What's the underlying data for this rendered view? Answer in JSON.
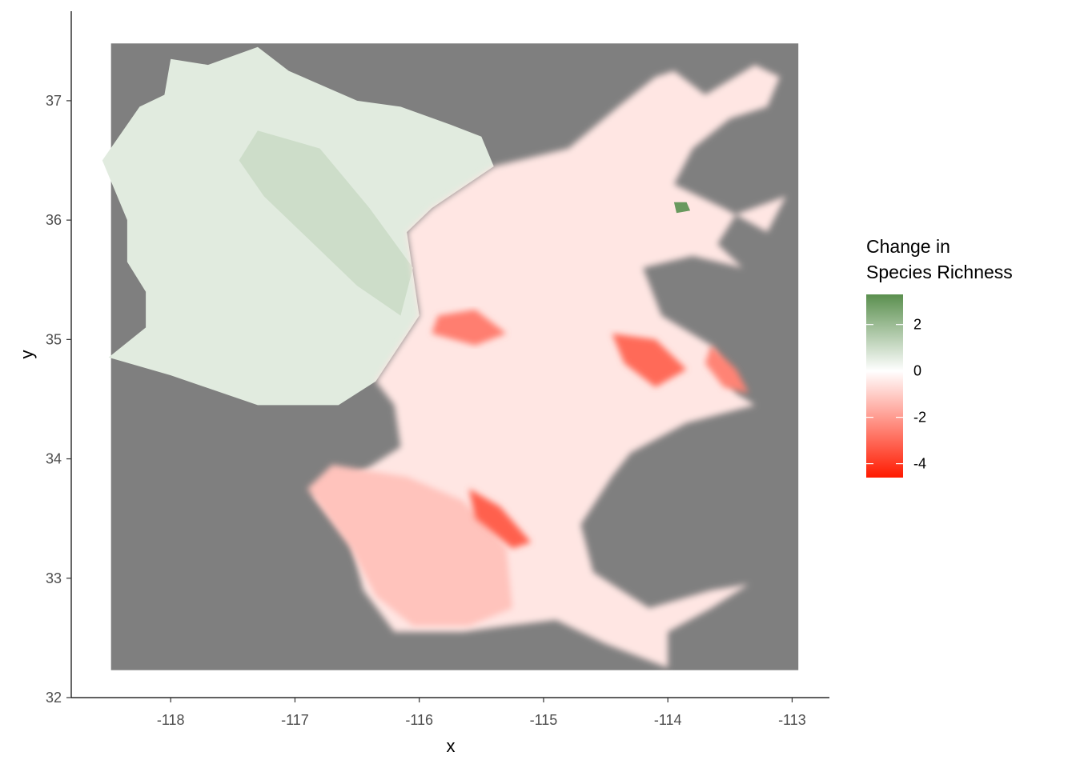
{
  "chart_data": {
    "type": "heatmap",
    "xlabel": "x",
    "ylabel": "y",
    "xlim": [
      -118.8,
      -112.7
    ],
    "ylim": [
      32.0,
      37.75
    ],
    "x_ticks": [
      -118,
      -117,
      -116,
      -115,
      -114,
      -113
    ],
    "x_tick_labels": [
      "-118",
      "-117",
      "-116",
      "-115",
      "-114",
      "-113"
    ],
    "y_ticks": [
      32,
      33,
      34,
      35,
      36,
      37
    ],
    "y_tick_labels": [
      "32",
      "33",
      "34",
      "35",
      "36",
      "37"
    ],
    "raster_extent": {
      "x": [
        -118.48,
        -112.95
      ],
      "y": [
        32.23,
        37.48
      ]
    },
    "na_fill": "#7f7f7f",
    "grid": false,
    "legend": {
      "title": "Change in\nSpecies Richness",
      "title_lines": [
        "Change in",
        "Species Richness"
      ],
      "placement": "right",
      "range": [
        -4.6,
        3.3
      ],
      "breaks": [
        2,
        0,
        -2,
        -4
      ],
      "break_labels": [
        "2",
        "0",
        "-2",
        "-4"
      ],
      "colors": {
        "high": "#5a8f4e",
        "mid": "#ffffff",
        "low": "#ff1a00"
      }
    },
    "regions": [
      {
        "name": "northwest",
        "value": 0.6,
        "outline": [
          [
            -118.0,
            37.35
          ],
          [
            -117.7,
            37.3
          ],
          [
            -117.3,
            37.45
          ],
          [
            -117.05,
            37.25
          ],
          [
            -116.5,
            37.0
          ],
          [
            -116.15,
            36.95
          ],
          [
            -115.75,
            36.8
          ],
          [
            -115.5,
            36.7
          ],
          [
            -115.4,
            36.45
          ],
          [
            -115.9,
            36.1
          ],
          [
            -116.1,
            35.9
          ],
          [
            -116.0,
            35.2
          ],
          [
            -116.35,
            34.65
          ],
          [
            -116.65,
            34.45
          ],
          [
            -117.3,
            34.45
          ],
          [
            -118.0,
            34.7
          ],
          [
            -118.5,
            34.85
          ],
          [
            -118.2,
            35.1
          ],
          [
            -118.2,
            35.4
          ],
          [
            -118.35,
            35.65
          ],
          [
            -118.35,
            36.0
          ],
          [
            -118.55,
            36.5
          ],
          [
            -118.25,
            36.95
          ],
          [
            -118.05,
            37.05
          ]
        ]
      },
      {
        "name": "northwest-core",
        "value": 1.0,
        "outline": [
          [
            -117.3,
            36.75
          ],
          [
            -116.8,
            36.6
          ],
          [
            -116.4,
            36.1
          ],
          [
            -116.05,
            35.6
          ],
          [
            -116.15,
            35.2
          ],
          [
            -116.5,
            35.45
          ],
          [
            -116.9,
            35.85
          ],
          [
            -117.25,
            36.2
          ],
          [
            -117.45,
            36.5
          ]
        ]
      },
      {
        "name": "central-east",
        "value": -0.5,
        "outline": [
          [
            -115.4,
            36.45
          ],
          [
            -114.8,
            36.6
          ],
          [
            -114.4,
            36.95
          ],
          [
            -114.1,
            37.2
          ],
          [
            -113.95,
            37.25
          ],
          [
            -113.7,
            37.05
          ],
          [
            -113.3,
            37.3
          ],
          [
            -113.1,
            37.2
          ],
          [
            -113.2,
            36.95
          ],
          [
            -113.5,
            36.85
          ],
          [
            -113.8,
            36.6
          ],
          [
            -113.95,
            36.3
          ],
          [
            -113.55,
            36.1
          ],
          [
            -113.2,
            35.9
          ],
          [
            -113.05,
            36.2
          ],
          [
            -113.45,
            36.05
          ],
          [
            -113.6,
            35.8
          ],
          [
            -113.4,
            35.6
          ],
          [
            -113.8,
            35.7
          ],
          [
            -114.2,
            35.6
          ],
          [
            -114.05,
            35.2
          ],
          [
            -113.65,
            34.95
          ],
          [
            -113.45,
            34.55
          ],
          [
            -113.3,
            34.45
          ],
          [
            -113.85,
            34.3
          ],
          [
            -114.3,
            34.05
          ],
          [
            -114.45,
            33.85
          ],
          [
            -114.7,
            33.45
          ],
          [
            -114.6,
            33.05
          ],
          [
            -114.15,
            32.75
          ],
          [
            -113.65,
            32.9
          ],
          [
            -113.35,
            32.95
          ],
          [
            -113.65,
            32.75
          ],
          [
            -114.0,
            32.55
          ],
          [
            -114.0,
            32.25
          ],
          [
            -114.5,
            32.45
          ],
          [
            -114.9,
            32.65
          ],
          [
            -115.3,
            32.6
          ],
          [
            -115.65,
            32.55
          ],
          [
            -116.2,
            32.55
          ],
          [
            -116.45,
            32.9
          ],
          [
            -116.55,
            33.3
          ],
          [
            -116.85,
            33.7
          ],
          [
            -116.45,
            33.9
          ],
          [
            -116.15,
            34.1
          ],
          [
            -116.2,
            34.45
          ],
          [
            -116.35,
            34.65
          ],
          [
            -116.0,
            35.2
          ],
          [
            -116.1,
            35.9
          ],
          [
            -115.9,
            36.1
          ]
        ]
      },
      {
        "name": "southwest",
        "value": -1.2,
        "outline": [
          [
            -116.7,
            33.95
          ],
          [
            -116.1,
            33.85
          ],
          [
            -115.65,
            33.65
          ],
          [
            -115.3,
            33.25
          ],
          [
            -115.25,
            32.75
          ],
          [
            -115.6,
            32.6
          ],
          [
            -116.05,
            32.6
          ],
          [
            -116.35,
            32.85
          ],
          [
            -116.55,
            33.25
          ],
          [
            -116.9,
            33.75
          ]
        ]
      },
      {
        "name": "hotspot-1",
        "value": -3.2,
        "outline": [
          [
            -115.6,
            33.75
          ],
          [
            -115.35,
            33.6
          ],
          [
            -115.1,
            33.3
          ],
          [
            -115.25,
            33.25
          ],
          [
            -115.55,
            33.5
          ]
        ]
      },
      {
        "name": "hotspot-2",
        "value": -3.0,
        "outline": [
          [
            -114.45,
            35.05
          ],
          [
            -114.1,
            35.0
          ],
          [
            -113.85,
            34.75
          ],
          [
            -114.1,
            34.6
          ],
          [
            -114.35,
            34.8
          ]
        ]
      },
      {
        "name": "hotspot-3",
        "value": -2.6,
        "outline": [
          [
            -115.85,
            35.2
          ],
          [
            -115.55,
            35.25
          ],
          [
            -115.3,
            35.05
          ],
          [
            -115.55,
            34.95
          ],
          [
            -115.9,
            35.05
          ]
        ]
      },
      {
        "name": "hotspot-4",
        "value": -2.5,
        "outline": [
          [
            -113.65,
            34.95
          ],
          [
            -113.45,
            34.75
          ],
          [
            -113.35,
            34.55
          ],
          [
            -113.55,
            34.6
          ],
          [
            -113.7,
            34.8
          ]
        ]
      },
      {
        "name": "green-speck",
        "value": 3.0,
        "outline": [
          [
            -113.95,
            36.15
          ],
          [
            -113.85,
            36.15
          ],
          [
            -113.82,
            36.08
          ],
          [
            -113.93,
            36.06
          ]
        ]
      }
    ]
  }
}
